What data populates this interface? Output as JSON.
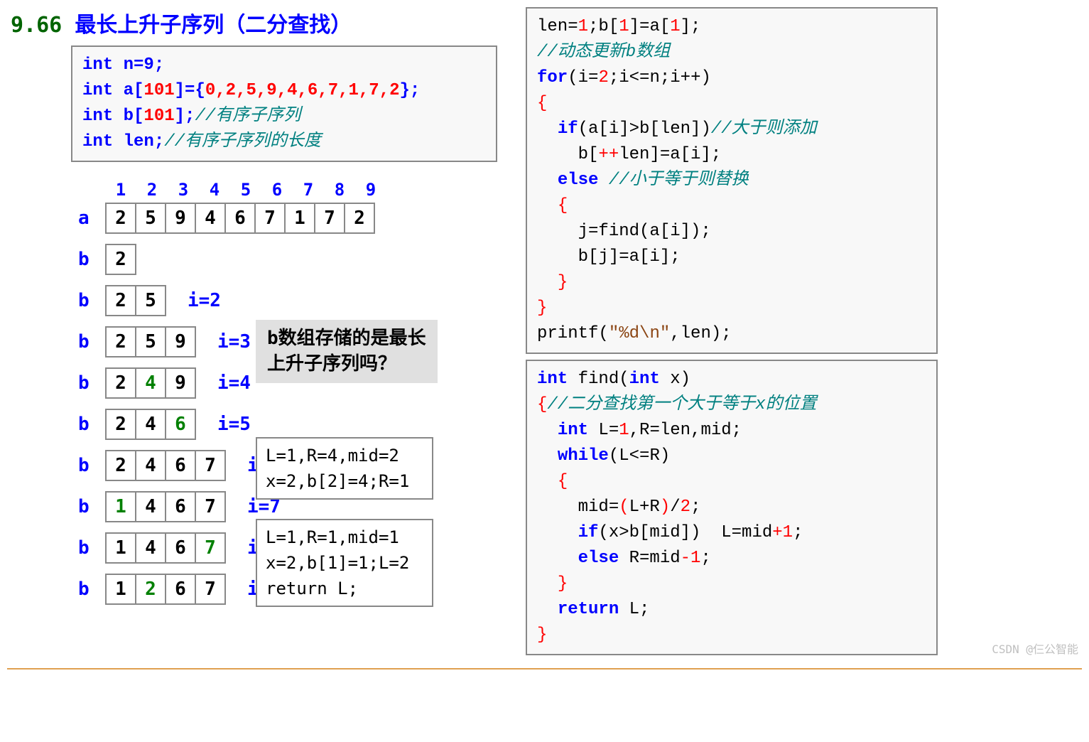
{
  "title": {
    "number": "9.66",
    "text": "最长上升子序列（二分查找）"
  },
  "codeLeft": {
    "l1": "int n=9;",
    "l2a": "int a[",
    "l2b": "101",
    "l2c": "]={",
    "l2d": "0,2,5,9,4,6,7,1,7,2",
    "l2e": "};",
    "l3a": "int b[",
    "l3b": "101",
    "l3c": "];",
    "l3d": "//有序子序列",
    "l4a": "int len;",
    "l4b": "//有序子序列的长度"
  },
  "traceHeader": [
    "1",
    "2",
    "3",
    "4",
    "5",
    "6",
    "7",
    "8",
    "9"
  ],
  "rows": [
    {
      "label": "a",
      "cells": [
        [
          "2",
          false
        ],
        [
          "5",
          false
        ],
        [
          "9",
          false
        ],
        [
          "4",
          false
        ],
        [
          "6",
          false
        ],
        [
          "7",
          false
        ],
        [
          "1",
          false
        ],
        [
          "7",
          false
        ],
        [
          "2",
          false
        ]
      ],
      "i": ""
    },
    {
      "label": "b",
      "cells": [
        [
          "2",
          false
        ]
      ],
      "i": ""
    },
    {
      "label": "b",
      "cells": [
        [
          "2",
          false
        ],
        [
          "5",
          false
        ]
      ],
      "i": "i=2"
    },
    {
      "label": "b",
      "cells": [
        [
          "2",
          false
        ],
        [
          "5",
          false
        ],
        [
          "9",
          false
        ]
      ],
      "i": "i=3"
    },
    {
      "label": "b",
      "cells": [
        [
          "2",
          false
        ],
        [
          "4",
          true
        ],
        [
          "9",
          false
        ]
      ],
      "i": "i=4"
    },
    {
      "label": "b",
      "cells": [
        [
          "2",
          false
        ],
        [
          "4",
          false
        ],
        [
          "6",
          true
        ]
      ],
      "i": "i=5"
    },
    {
      "label": "b",
      "cells": [
        [
          "2",
          false
        ],
        [
          "4",
          false
        ],
        [
          "6",
          false
        ],
        [
          "7",
          false
        ]
      ],
      "i": "i=6"
    },
    {
      "label": "b",
      "cells": [
        [
          "1",
          true
        ],
        [
          "4",
          false
        ],
        [
          "6",
          false
        ],
        [
          "7",
          false
        ]
      ],
      "i": "i=7"
    },
    {
      "label": "b",
      "cells": [
        [
          "1",
          false
        ],
        [
          "4",
          false
        ],
        [
          "6",
          false
        ],
        [
          "7",
          true
        ]
      ],
      "i": "i=8"
    },
    {
      "label": "b",
      "cells": [
        [
          "1",
          false
        ],
        [
          "2",
          true
        ],
        [
          "6",
          false
        ],
        [
          "7",
          false
        ]
      ],
      "i": "i=9"
    }
  ],
  "question": {
    "line1": "b数组存储的是最长",
    "line2": "上升子序列吗？"
  },
  "box1": {
    "l1": "L=1,R=4,mid=2",
    "l2": "x=2,b[2]=4;R=1"
  },
  "box2": {
    "l1": "L=1,R=1,mid=1",
    "l2": "x=2,b[1]=1;L=2",
    "l3": "return L;"
  },
  "codeMain": {
    "l1a": "len=",
    "l1b": "1",
    "l1c": ";b[",
    "l1d": "1",
    "l1e": "]=a[",
    "l1f": "1",
    "l1g": "];",
    "l2": "//动态更新b数组",
    "l3a": "for",
    "l3b": "(i=",
    "l3c": "2",
    "l3d": ";i<=n;i++)",
    "l4": "{",
    "l5a": "if",
    "l5b": "(a[i]>b[len])",
    "l5c": "//大于则添加",
    "l6a": "b[",
    "l6b": "++",
    "l6c": "len]=a[i];",
    "l7a": "else",
    "l7b": "//小于等于则替换",
    "l8": "{",
    "l9": "j=find(a[i]);",
    "l10": "b[j]=a[i];",
    "l11": "}",
    "l12": "}",
    "l13a": "printf(",
    "l13b": "\"%d\\n\"",
    "l13c": ",len);"
  },
  "codeFind": {
    "l1a": "int",
    "l1b": " find(",
    "l1c": "int",
    "l1d": " x)",
    "l2a": "{",
    "l2b": "//二分查找第一个大于等于x的位置",
    "l3a": "int",
    "l3b": " L=",
    "l3c": "1",
    "l3d": ",R=len,mid;",
    "l4a": "while",
    "l4b": "(L<=R)",
    "l5": "{",
    "l6a": "mid=",
    "l6b": "(",
    "l6c": "L+R",
    "l6d": ")",
    "l6e": "/",
    "l6f": "2",
    "l6g": ";",
    "l7a": "if",
    "l7b": "(x>b[mid])  L=mid",
    "l7c": "+1",
    "l7d": ";",
    "l8a": "else",
    "l8b": " R=mid",
    "l8c": "-1",
    "l8d": ";",
    "l9": "}",
    "l10a": "return",
    "l10b": " L;",
    "l11": "}"
  },
  "watermark": "CSDN @仨公智能",
  "colors": {
    "blue": "#0000ff",
    "red": "#ff0000",
    "green": "#008000",
    "teal": "#008080",
    "border": "#888888",
    "bg": "#f8f8f8"
  }
}
